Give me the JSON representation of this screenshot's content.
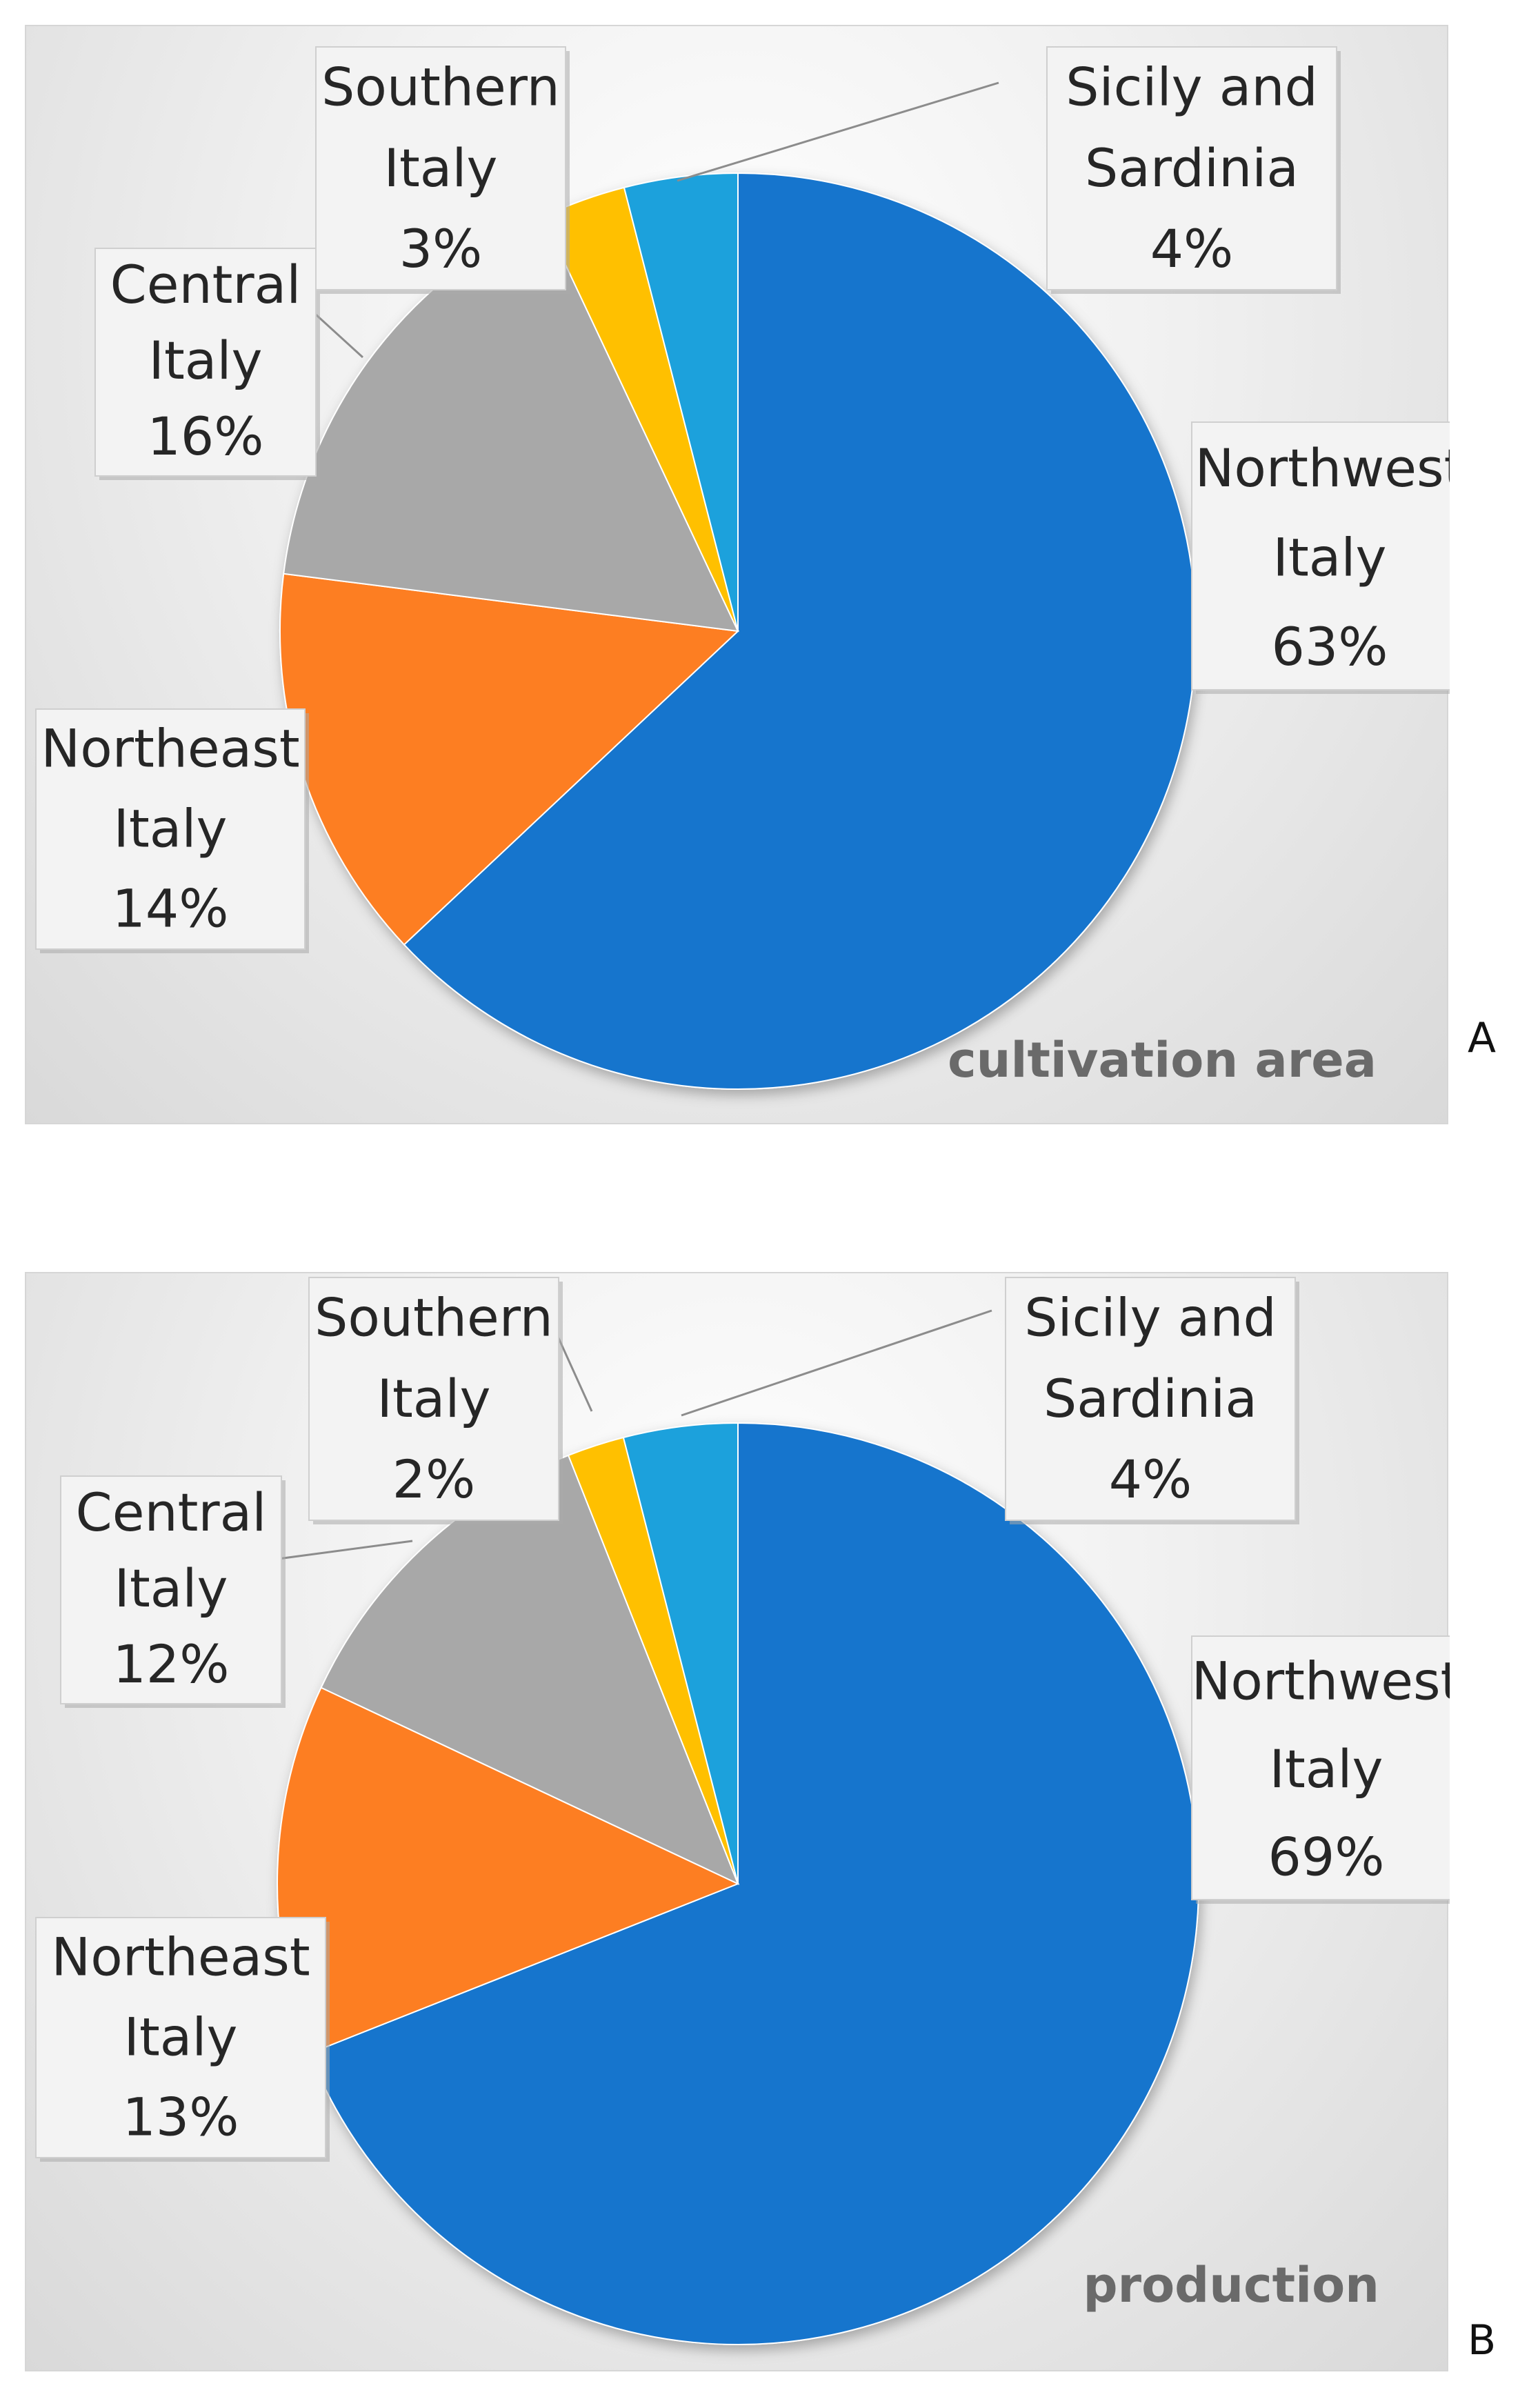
{
  "chart_data": [
    {
      "type": "pie",
      "title": "cultivation area",
      "panel_letter": "A",
      "categories": [
        "Northwest Italy",
        "Northeast Italy",
        "Central Italy",
        "Southern Italy",
        "Sicily and Sardinia"
      ],
      "values": [
        63,
        14,
        16,
        3,
        4
      ],
      "colors": [
        "#1874CD",
        "#FD7E24",
        "#A8A8A8",
        "#FFC000",
        "#1FA1DC"
      ],
      "labels": [
        {
          "lines": [
            "Northwest",
            "Italy",
            "63%"
          ]
        },
        {
          "lines": [
            "Northeast",
            "Italy",
            "14%"
          ]
        },
        {
          "lines": [
            "Central",
            "Italy",
            "16%"
          ]
        },
        {
          "lines": [
            "Southern",
            "Italy",
            "3%"
          ]
        },
        {
          "lines": [
            "Sicily and",
            "Sardinia",
            "4%"
          ]
        }
      ],
      "start_angle_deg": 90,
      "direction": "clockwise",
      "legend": "none",
      "data_labels": "outside with leader lines"
    },
    {
      "type": "pie",
      "title": "production",
      "panel_letter": "B",
      "categories": [
        "Northwest Italy",
        "Northeast Italy",
        "Central Italy",
        "Southern Italy",
        "Sicily and Sardinia"
      ],
      "values": [
        69,
        13,
        12,
        2,
        4
      ],
      "colors": [
        "#1874CD",
        "#FD7E24",
        "#A8A8A8",
        "#FFC000",
        "#1FA1DC"
      ],
      "labels": [
        {
          "lines": [
            "Northwest",
            "Italy",
            "69%"
          ]
        },
        {
          "lines": [
            "Northeast",
            "Italy",
            "13%"
          ]
        },
        {
          "lines": [
            "Central",
            "Italy",
            "12%"
          ]
        },
        {
          "lines": [
            "Southern",
            "Italy",
            "2%"
          ]
        },
        {
          "lines": [
            "Sicily and",
            "Sardinia",
            "4%"
          ]
        }
      ],
      "start_angle_deg": 90,
      "direction": "clockwise",
      "legend": "none",
      "data_labels": "outside with leader lines"
    }
  ]
}
